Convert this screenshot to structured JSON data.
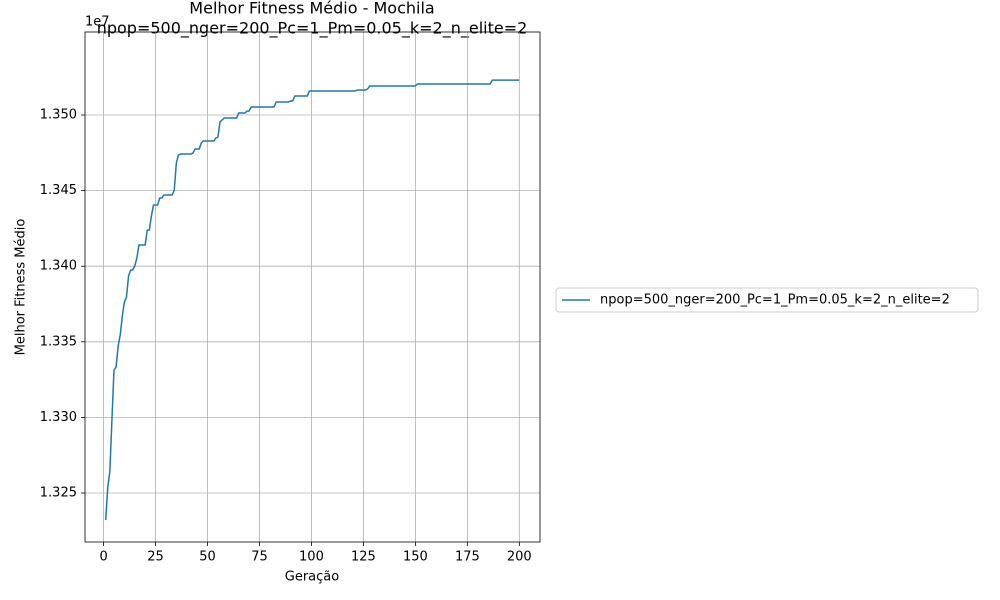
{
  "chart_data": {
    "type": "line",
    "title": "Melhor Fitness Médio - Mochila",
    "subtitle": "npop=500_nger=200_Pc=1_Pm=0.05_k=2_n_elite=2",
    "xlabel": "Geração",
    "ylabel": "Melhor Fitness Médio",
    "y_offset_label": "1e7",
    "grid": true,
    "legend": "outside right",
    "xlim": [
      -8.95,
      209.95
    ],
    "ylim": [
      13217600,
      13554900
    ],
    "xticks": [
      0,
      25,
      50,
      75,
      100,
      125,
      150,
      175,
      200
    ],
    "yticks": [
      {
        "value": 13250000,
        "label": "1.325"
      },
      {
        "value": 13300000,
        "label": "1.330"
      },
      {
        "value": 13350000,
        "label": "1.335"
      },
      {
        "value": 13400000,
        "label": "1.340"
      },
      {
        "value": 13450000,
        "label": "1.345"
      },
      {
        "value": 13500000,
        "label": "1.350"
      }
    ],
    "x": [
      1,
      2,
      3,
      4,
      5,
      6,
      7,
      8,
      9,
      10,
      11,
      12,
      13,
      14,
      15,
      16,
      17,
      18,
      19,
      20,
      21,
      22,
      23,
      24,
      25,
      26,
      27,
      28,
      29,
      30,
      31,
      32,
      33,
      34,
      35,
      36,
      37,
      38,
      39,
      40,
      41,
      42,
      43,
      44,
      45,
      46,
      47,
      48,
      49,
      50,
      51,
      52,
      53,
      54,
      55,
      56,
      57,
      58,
      59,
      60,
      61,
      62,
      63,
      64,
      65,
      66,
      67,
      68,
      69,
      70,
      71,
      72,
      73,
      74,
      75,
      76,
      77,
      78,
      79,
      80,
      81,
      82,
      83,
      84,
      85,
      86,
      87,
      88,
      89,
      90,
      91,
      92,
      93,
      94,
      95,
      96,
      97,
      98,
      99,
      100,
      101,
      102,
      103,
      104,
      105,
      106,
      107,
      108,
      109,
      110,
      111,
      112,
      113,
      114,
      115,
      116,
      117,
      118,
      119,
      120,
      121,
      122,
      123,
      124,
      125,
      126,
      127,
      128,
      129,
      130,
      131,
      132,
      133,
      134,
      135,
      136,
      137,
      138,
      139,
      140,
      141,
      142,
      143,
      144,
      145,
      146,
      147,
      148,
      149,
      150,
      151,
      152,
      153,
      154,
      155,
      156,
      157,
      158,
      159,
      160,
      161,
      162,
      163,
      164,
      165,
      166,
      167,
      168,
      169,
      170,
      171,
      172,
      173,
      174,
      175,
      176,
      177,
      178,
      179,
      180,
      181,
      182,
      183,
      184,
      185,
      186,
      187,
      188,
      189,
      190,
      191,
      192,
      193,
      194,
      195,
      196,
      197,
      198,
      199,
      200
    ],
    "series": [
      {
        "name": "npop=500_nger=200_Pc=1_Pm=0.05_k=2_n_elite=2",
        "color": "#1f77b4",
        "values": [
          13232100,
          13254000,
          13263900,
          13298300,
          13331300,
          13333300,
          13347200,
          13354500,
          13367100,
          13376300,
          13379600,
          13393500,
          13397500,
          13397500,
          13400100,
          13405400,
          13414000,
          13414000,
          13414000,
          13414000,
          13423900,
          13423900,
          13433200,
          13440500,
          13440500,
          13440500,
          13445100,
          13445100,
          13447100,
          13447100,
          13447100,
          13447100,
          13447100,
          13450400,
          13468300,
          13473500,
          13474200,
          13474200,
          13474200,
          13474200,
          13474200,
          13474200,
          13474900,
          13477500,
          13477500,
          13477500,
          13481500,
          13482800,
          13482800,
          13482800,
          13482800,
          13482800,
          13482800,
          13484800,
          13485400,
          13495400,
          13496700,
          13498000,
          13498000,
          13498000,
          13498000,
          13498000,
          13498000,
          13498000,
          13501300,
          13501300,
          13501300,
          13501300,
          13502600,
          13502600,
          13505300,
          13505300,
          13505300,
          13505300,
          13505300,
          13505300,
          13505300,
          13505300,
          13505300,
          13505300,
          13505300,
          13505300,
          13508600,
          13508600,
          13508600,
          13508600,
          13508600,
          13508600,
          13508600,
          13509300,
          13509300,
          13512600,
          13512600,
          13512600,
          13512600,
          13512600,
          13512600,
          13512600,
          13515900,
          13515900,
          13515900,
          13515900,
          13515900,
          13515900,
          13515900,
          13515900,
          13515900,
          13515900,
          13515900,
          13515900,
          13515900,
          13515900,
          13515900,
          13515900,
          13515900,
          13515900,
          13515900,
          13515900,
          13515900,
          13515900,
          13515900,
          13516500,
          13516500,
          13516500,
          13516500,
          13516500,
          13517200,
          13519200,
          13519200,
          13519200,
          13519200,
          13519200,
          13519200,
          13519200,
          13519200,
          13519200,
          13519200,
          13519200,
          13519200,
          13519200,
          13519200,
          13519200,
          13519200,
          13519200,
          13519200,
          13519200,
          13519200,
          13519200,
          13519200,
          13519200,
          13520500,
          13520500,
          13520500,
          13520500,
          13520500,
          13520500,
          13520500,
          13520500,
          13520500,
          13520500,
          13520500,
          13520500,
          13520500,
          13520500,
          13520500,
          13520500,
          13520500,
          13520500,
          13520500,
          13520500,
          13520500,
          13520500,
          13520500,
          13520500,
          13520500,
          13520500,
          13520500,
          13520500,
          13520500,
          13520500,
          13520500,
          13520500,
          13520500,
          13520500,
          13520500,
          13520500,
          13523100,
          13523100,
          13523100,
          13523100,
          13523100,
          13523100,
          13523100,
          13523100,
          13523100,
          13523100,
          13523100,
          13523100,
          13523100,
          13523100
        ]
      }
    ]
  }
}
